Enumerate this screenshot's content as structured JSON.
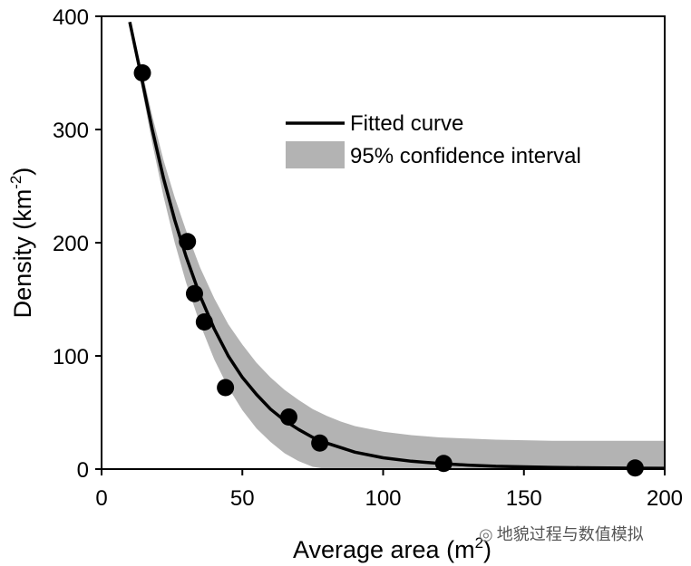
{
  "chart_data": {
    "type": "scatter",
    "title": "",
    "xlabel": "Average area (m",
    "xlabel_sup": "2",
    "xlabel_close": ")",
    "ylabel": "Density (km",
    "ylabel_sup": "-2",
    "ylabel_close": ")",
    "xlim": [
      0,
      200
    ],
    "ylim": [
      0,
      400
    ],
    "x_ticks": [
      0,
      50,
      100,
      150,
      200
    ],
    "y_ticks": [
      0,
      100,
      200,
      300,
      400
    ],
    "x_tick_labels": [
      "0",
      "50",
      "100",
      "150",
      "200"
    ],
    "y_tick_labels": [
      "0",
      "100",
      "200",
      "300",
      "400"
    ],
    "grid": false,
    "legend_position": "top-right",
    "points": {
      "x": [
        14.5,
        30.5,
        33,
        36.5,
        44,
        66.5,
        77.5,
        121.5,
        189.5
      ],
      "y": [
        350,
        201,
        155,
        130,
        72,
        46,
        23,
        5,
        1
      ]
    },
    "fitted_curve": {
      "name": "Fitted curve",
      "x": [
        10,
        14,
        18,
        22,
        26,
        30,
        35,
        40,
        45,
        50,
        55,
        60,
        65,
        70,
        75,
        80,
        90,
        100,
        110,
        120,
        130,
        140,
        150,
        160,
        170,
        180,
        190,
        200
      ],
      "y": [
        395,
        348,
        300,
        257,
        220,
        188,
        153,
        124,
        100,
        81,
        66,
        53,
        43,
        35,
        28,
        23,
        15,
        10,
        7,
        5,
        3.5,
        2.5,
        2,
        1.5,
        1.2,
        1,
        0.8,
        0.7
      ]
    },
    "confidence_band": {
      "name": "95% confidence interval",
      "x": [
        10,
        14,
        18,
        22,
        26,
        30,
        35,
        40,
        45,
        50,
        55,
        60,
        65,
        70,
        75,
        80,
        85,
        90,
        100,
        110,
        120,
        130,
        140,
        150,
        160,
        170,
        180,
        190,
        200
      ],
      "lower": [
        395,
        340,
        288,
        241,
        200,
        165,
        128,
        97,
        72,
        52,
        36,
        24,
        14,
        7,
        2,
        0,
        0,
        0,
        0,
        0,
        0,
        0,
        0,
        0,
        0,
        0,
        0,
        0,
        0
      ],
      "upper": [
        395,
        356,
        312,
        273,
        240,
        211,
        178,
        151,
        128,
        110,
        94,
        81,
        70,
        61,
        53,
        47,
        42,
        38,
        33,
        30,
        28,
        27,
        26,
        25.5,
        25,
        25,
        25,
        25,
        25
      ]
    }
  },
  "colors": {
    "curve": "#000000",
    "band": "#b3b3b3",
    "points": "#000000",
    "axis": "#000000"
  },
  "watermark": {
    "icon": "wechat-icon",
    "text": "地貌过程与数值模拟"
  }
}
